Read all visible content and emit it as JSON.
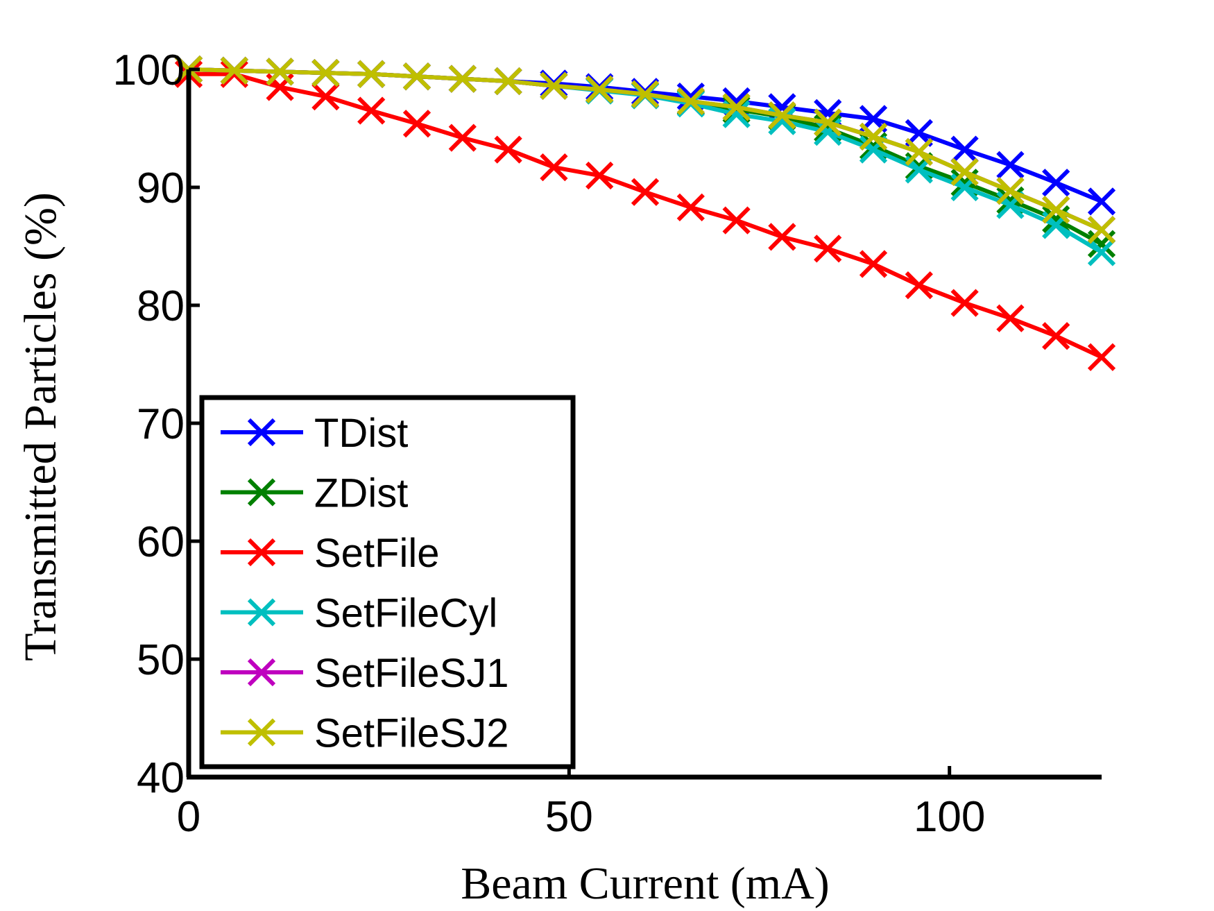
{
  "chart_data": {
    "type": "line",
    "title": "",
    "xlabel": "Beam Current (mA)",
    "ylabel": "Transmitted Particles (%)",
    "xlim": [
      0,
      120
    ],
    "ylim": [
      40,
      100
    ],
    "x_ticks": [
      0,
      50,
      100
    ],
    "y_ticks": [
      40,
      50,
      60,
      70,
      80,
      90,
      100
    ],
    "grid": false,
    "legend_position": "bottom-left",
    "marker": "x",
    "x": [
      0,
      6,
      12,
      18,
      24,
      30,
      36,
      42,
      48,
      54,
      60,
      66,
      72,
      78,
      84,
      90,
      96,
      102,
      108,
      114,
      120
    ],
    "series": [
      {
        "name": "TDist",
        "color": "#0000ff",
        "values": [
          100,
          99.9,
          99.8,
          99.7,
          99.6,
          99.4,
          99.2,
          99.0,
          98.8,
          98.5,
          98.1,
          97.7,
          97.3,
          96.8,
          96.3,
          95.8,
          94.6,
          93.2,
          91.9,
          90.4,
          88.8
        ]
      },
      {
        "name": "ZDist",
        "color": "#008000",
        "values": [
          100,
          99.9,
          99.8,
          99.7,
          99.6,
          99.4,
          99.2,
          99.0,
          98.6,
          98.3,
          97.8,
          97.2,
          96.6,
          96.0,
          95.0,
          93.5,
          91.8,
          90.4,
          88.9,
          87.3,
          85.2
        ]
      },
      {
        "name": "SetFile",
        "color": "#ff0000",
        "values": [
          99.6,
          99.6,
          98.5,
          97.7,
          96.5,
          95.4,
          94.2,
          93.2,
          91.7,
          91.0,
          89.6,
          88.3,
          87.2,
          85.8,
          84.8,
          83.5,
          81.7,
          80.2,
          78.9,
          77.4,
          75.6
        ]
      },
      {
        "name": "SetFileCyl",
        "color": "#00bfbf",
        "values": [
          100,
          99.9,
          99.8,
          99.7,
          99.6,
          99.4,
          99.2,
          99.0,
          98.6,
          98.2,
          97.8,
          97.1,
          96.2,
          95.6,
          94.7,
          93.2,
          91.5,
          90.0,
          88.5,
          86.8,
          84.5
        ]
      },
      {
        "name": "SetFileSJ1",
        "color": "#bf00bf",
        "values": [
          100,
          99.9,
          99.8,
          99.7,
          99.6,
          99.4,
          99.2,
          99.0,
          98.6,
          98.3,
          97.9,
          97.3,
          96.8,
          96.1,
          95.5,
          94.3,
          93.0,
          91.3,
          89.7,
          88.1,
          86.4
        ]
      },
      {
        "name": "SetFileSJ2",
        "color": "#bfbf00",
        "values": [
          100,
          99.9,
          99.8,
          99.7,
          99.6,
          99.4,
          99.2,
          99.0,
          98.6,
          98.3,
          97.9,
          97.3,
          96.8,
          96.1,
          95.5,
          94.3,
          93.0,
          91.3,
          89.7,
          88.1,
          86.4
        ]
      }
    ]
  }
}
